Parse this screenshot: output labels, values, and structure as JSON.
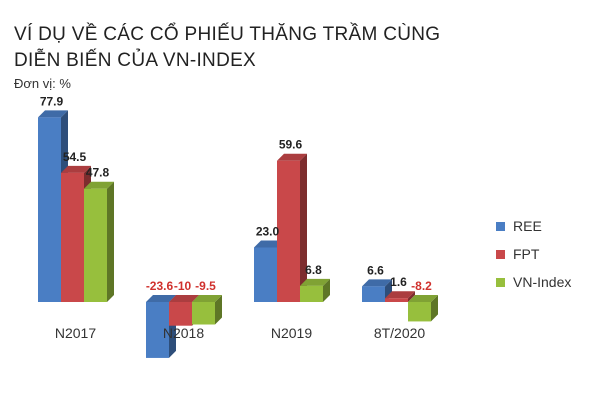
{
  "header": {
    "title_line1": "VÍ DỤ VỀ CÁC CỔ PHIẾU THĂNG TRẦM CÙNG",
    "title_line2": "DIỄN BIẾN CỦA VN-INDEX",
    "unit": "Đơn vị: %"
  },
  "chart_data": {
    "type": "bar",
    "title": "VÍ DỤ VỀ CÁC CỔ PHIẾU THĂNG TRẦM CÙNG DIỄN BIẾN CỦA VN-INDEX",
    "categories": [
      "N2017",
      "N2018",
      "N2019",
      "8T/2020"
    ],
    "series": [
      {
        "name": "REE",
        "values": [
          77.9,
          -23.6,
          23.0,
          6.6
        ],
        "labels": [
          "77.9",
          "-23.6",
          "23.0",
          "6.6"
        ],
        "color": "#4A7EC4"
      },
      {
        "name": "FPT",
        "values": [
          54.5,
          -10,
          59.6,
          1.6
        ],
        "labels": [
          "54.5",
          "-10",
          "59.6",
          "1.6"
        ],
        "color": "#C9484A"
      },
      {
        "name": "VN-Index",
        "values": [
          47.8,
          -9.5,
          6.8,
          -8.2
        ],
        "labels": [
          "47.8",
          "-9.5",
          "6.8",
          "-8.2"
        ],
        "color": "#97BF3D"
      }
    ],
    "negative_label_color": "#D0312D",
    "legend_position": "right",
    "grid": false,
    "xlabel": "",
    "ylabel": "Đơn vị: %"
  }
}
